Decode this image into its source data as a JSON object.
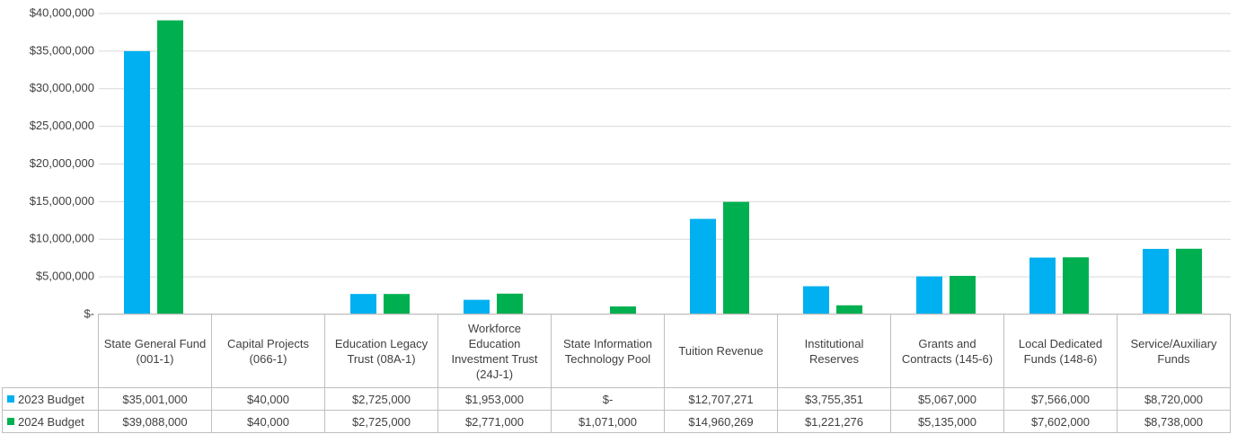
{
  "chart_data": {
    "type": "bar",
    "categories": [
      "State General Fund (001-1)",
      "Capital Projects (066-1)",
      "Education Legacy Trust (08A-1)",
      "Workforce Education Investment Trust (24J-1)",
      "State Information Technology Pool",
      "Tuition Revenue",
      "Institutional Reserves",
      "Grants and Contracts (145-6)",
      "Local Dedicated Funds (148-6)",
      "Service/Auxiliary Funds"
    ],
    "series": [
      {
        "name": "2023 Budget",
        "color": "#00b0f0",
        "values": [
          35001000,
          40000,
          2725000,
          1953000,
          0,
          12707271,
          3755351,
          5067000,
          7566000,
          8720000
        ],
        "value_labels": [
          "$35,001,000",
          "$40,000",
          "$2,725,000",
          "$1,953,000",
          "$-",
          "$12,707,271",
          "$3,755,351",
          "$5,067,000",
          "$7,566,000",
          "$8,720,000"
        ]
      },
      {
        "name": "2024 Budget",
        "color": "#00b050",
        "values": [
          39088000,
          40000,
          2725000,
          2771000,
          1071000,
          14960269,
          1221276,
          5135000,
          7602000,
          8738000
        ],
        "value_labels": [
          "$39,088,000",
          "$40,000",
          "$2,725,000",
          "$2,771,000",
          "$1,071,000",
          "$14,960,269",
          "$1,221,276",
          "$5,135,000",
          "$7,602,000",
          "$8,738,000"
        ]
      }
    ],
    "ylim": [
      0,
      40000000
    ],
    "yticks": [
      {
        "value": 0,
        "label": "$-"
      },
      {
        "value": 5000000,
        "label": "$5,000,000"
      },
      {
        "value": 10000000,
        "label": "$10,000,000"
      },
      {
        "value": 15000000,
        "label": "$15,000,000"
      },
      {
        "value": 20000000,
        "label": "$20,000,000"
      },
      {
        "value": 25000000,
        "label": "$25,000,000"
      },
      {
        "value": 30000000,
        "label": "$30,000,000"
      },
      {
        "value": 35000000,
        "label": "$35,000,000"
      },
      {
        "value": 40000000,
        "label": "$40,000,000"
      }
    ],
    "grid": true
  }
}
